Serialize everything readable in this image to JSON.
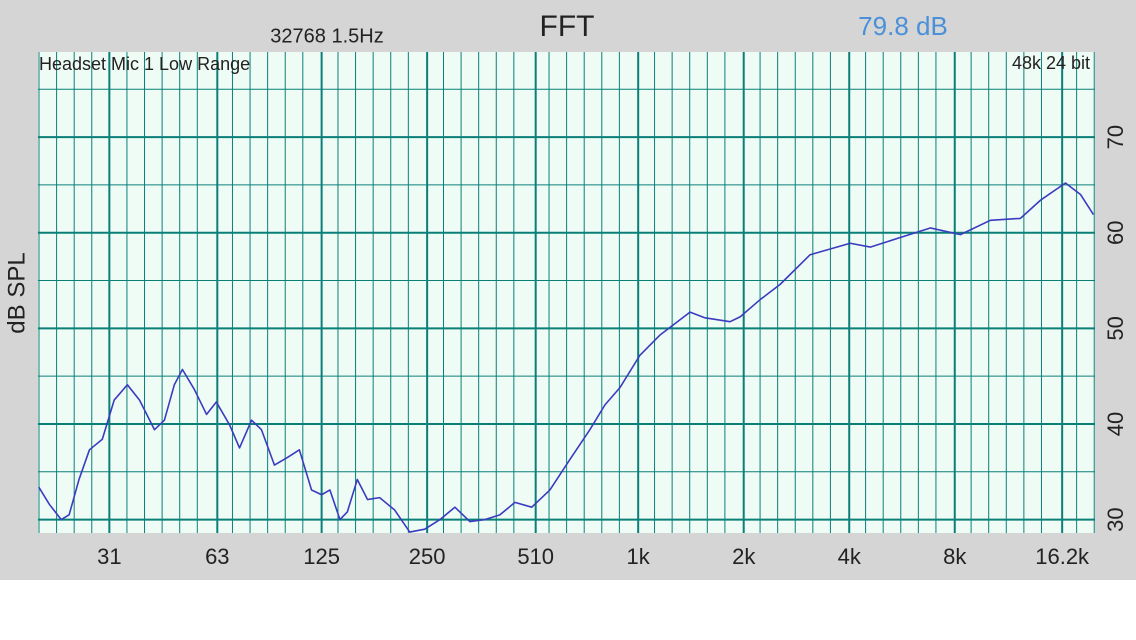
{
  "chart_data": {
    "type": "line",
    "title": "FFT",
    "annotations": [
      "32768  1.5Hz",
      "79.8 dB",
      "Headset Mic 1 Low Range",
      "48k 24 bit"
    ],
    "ylabel": "dB SPL",
    "xscale": "log",
    "grid": true,
    "color": "#3b3bbf",
    "x": [
      19.5,
      20.9,
      22.6,
      23.8,
      25.4,
      27.2,
      29.6,
      32.0,
      34.9,
      37.8,
      41.7,
      44.5,
      47.5,
      50.1,
      54.2,
      58.7,
      62.6,
      68.3,
      72.9,
      78.9,
      84.2,
      91.7,
      99.9,
      108,
      117,
      125,
      132,
      141,
      148,
      158,
      169,
      183,
      202,
      223,
      246,
      272,
      300,
      331,
      365,
      403,
      445,
      497,
      560,
      639,
      728,
      804,
      887,
      1012,
      1154,
      1406,
      1551,
      1828,
      1953,
      2227,
      2541,
      3094,
      4027,
      4594,
      5592,
      6814,
      8302,
      10109,
      12316,
      14049,
      16557,
      18271,
      19893
    ],
    "values": [
      33.4,
      31.6,
      30,
      30.5,
      34.2,
      37.3,
      38.4,
      42.5,
      44.1,
      42.5,
      39.4,
      40.4,
      44.1,
      45.7,
      43.6,
      41,
      42.3,
      39.9,
      37.5,
      40.4,
      39.4,
      35.7,
      36.5,
      37.3,
      33.1,
      32.6,
      33.1,
      30,
      30.8,
      34.2,
      32.1,
      32.3,
      31,
      28.7,
      29,
      30,
      31.3,
      29.8,
      30,
      30.5,
      31.8,
      31.3,
      33.1,
      36.3,
      39.4,
      42,
      43.8,
      47.2,
      49.3,
      51.7,
      51.1,
      50.7,
      51.2,
      53,
      54.6,
      57.7,
      58.9,
      58.5,
      59.5,
      60.5,
      59.8,
      61.3,
      61.5,
      63.4,
      65.2,
      64,
      61.9
    ],
    "xlim": [
      19.4,
      20100
    ],
    "xticks": [
      31,
      63,
      125,
      250,
      510,
      {
        "value": 1000,
        "label": "1k"
      },
      {
        "value": 2000,
        "label": "2k"
      },
      {
        "value": 4000,
        "label": "4k"
      },
      {
        "value": 8000,
        "label": "8k"
      },
      {
        "value": 16200,
        "label": "16.2k"
      }
    ],
    "ylim": [
      28.6,
      78.9
    ],
    "yticks": [
      30,
      40,
      50,
      60,
      70
    ]
  }
}
